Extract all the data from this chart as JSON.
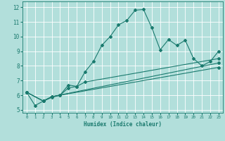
{
  "xlabel": "Humidex (Indice chaleur)",
  "background_color": "#b2dfdb",
  "grid_color": "#ffffff",
  "line_color": "#1a7a6e",
  "xlim": [
    -0.5,
    23.5
  ],
  "ylim": [
    4.8,
    12.4
  ],
  "yticks": [
    5,
    6,
    7,
    8,
    9,
    10,
    11,
    12
  ],
  "xticks": [
    0,
    1,
    2,
    3,
    4,
    5,
    6,
    7,
    8,
    9,
    10,
    11,
    12,
    13,
    14,
    15,
    16,
    17,
    18,
    19,
    20,
    21,
    22,
    23
  ],
  "line1_x": [
    0,
    1,
    2,
    3,
    4,
    5,
    6,
    7,
    8,
    9,
    10,
    11,
    12,
    13,
    14,
    15,
    16,
    17,
    18,
    19,
    20,
    21,
    22,
    23
  ],
  "line1_y": [
    6.2,
    5.3,
    5.6,
    5.9,
    6.0,
    6.7,
    6.6,
    7.6,
    8.3,
    9.4,
    10.0,
    10.8,
    11.1,
    11.8,
    11.85,
    10.6,
    9.1,
    9.8,
    9.4,
    9.75,
    8.5,
    8.0,
    8.3,
    9.0
  ],
  "line2_x": [
    0,
    2,
    3,
    4,
    5,
    6,
    7,
    23
  ],
  "line2_y": [
    6.2,
    5.6,
    5.85,
    6.0,
    6.5,
    6.6,
    6.9,
    8.5
  ],
  "line3_x": [
    0,
    2,
    3,
    23
  ],
  "line3_y": [
    6.2,
    5.6,
    5.9,
    8.2
  ],
  "line4_x": [
    0,
    2,
    3,
    23
  ],
  "line4_y": [
    6.2,
    5.6,
    5.9,
    7.9
  ]
}
